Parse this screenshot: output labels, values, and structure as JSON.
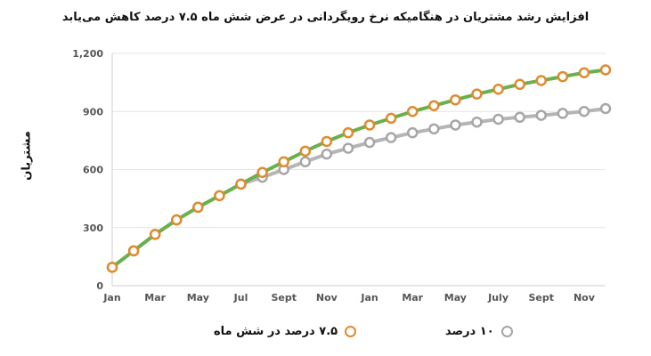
{
  "colors": {
    "series_a_line": "#6ab04c",
    "series_a_marker": "#e08a2e",
    "series_b_line": "#b5b5b5",
    "series_b_marker": "#a6a6a6",
    "grid": "#e6e6e6",
    "axis": "#cfcfcf"
  },
  "chart_data": {
    "type": "line",
    "title": "افزایش رشد مشتریان در هنگامیکه نرخ رویگردانی در عرض شش ماه ۷.۵ درصد کاهش می‌یابد",
    "xlabel": "",
    "ylabel": "مشتریان",
    "ylim": [
      0,
      1200
    ],
    "yticks": [
      0,
      300,
      600,
      900,
      1200
    ],
    "ytick_labels": [
      "0",
      "300",
      "600",
      "900",
      "1,200"
    ],
    "x": [
      1,
      2,
      3,
      4,
      5,
      6,
      7,
      8,
      9,
      10,
      11,
      12,
      13,
      14,
      15,
      16,
      17,
      18,
      19,
      20,
      21,
      22,
      23,
      24
    ],
    "xticks": [
      1,
      3,
      5,
      7,
      9,
      11,
      13,
      15,
      17,
      19,
      21,
      23
    ],
    "xtick_labels": [
      "Jan",
      "Mar",
      "May",
      "Jul",
      "Sept",
      "Nov",
      "Jan",
      "Mar",
      "May",
      "July",
      "Sept",
      "Nov"
    ],
    "grid": "horizontal",
    "legend_position": "bottom",
    "series": [
      {
        "name": "۷.۵ درصد در شش ماه",
        "values": [
          95,
          180,
          265,
          340,
          405,
          465,
          525,
          585,
          640,
          695,
          745,
          790,
          830,
          865,
          900,
          930,
          960,
          990,
          1015,
          1040,
          1060,
          1080,
          1100,
          1115
        ]
      },
      {
        "name": "۱۰ درصد",
        "values": [
          95,
          180,
          265,
          340,
          405,
          465,
          525,
          560,
          600,
          640,
          680,
          710,
          740,
          765,
          790,
          810,
          830,
          845,
          860,
          870,
          880,
          890,
          900,
          915
        ]
      }
    ]
  }
}
